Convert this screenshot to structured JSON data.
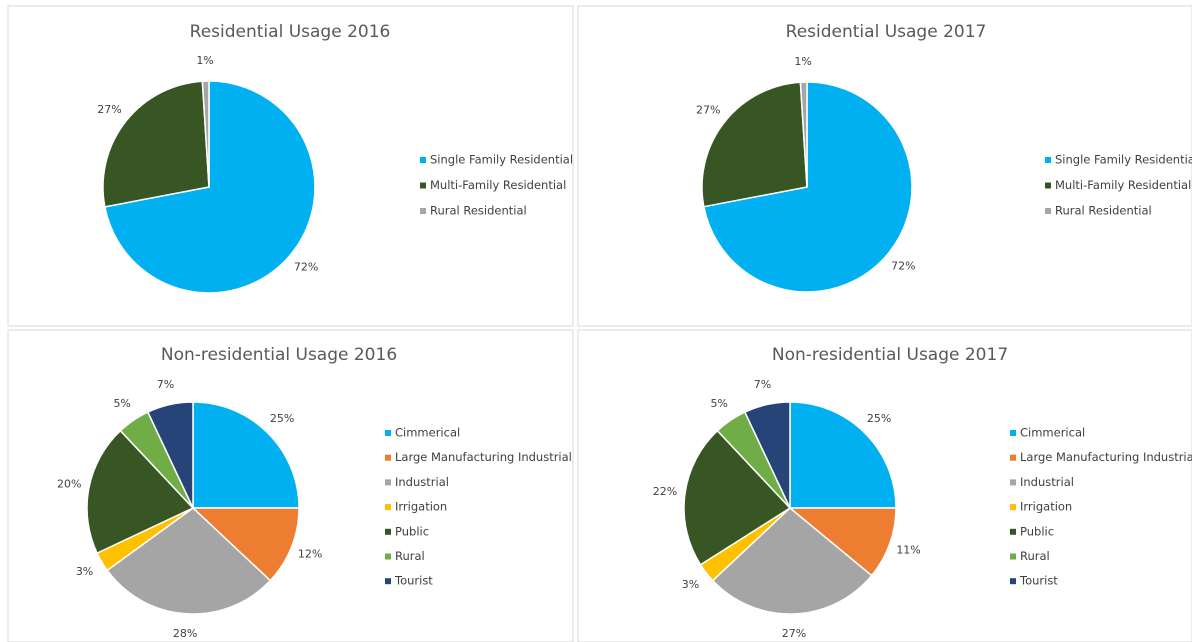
{
  "chart_data": [
    {
      "type": "pie",
      "title": "Residential Usage 2016",
      "categories": [
        "Single Family Residential",
        "Multi-Family Residential",
        "Rural Residential"
      ],
      "values": [
        72,
        27,
        1
      ],
      "value_labels": [
        "72%",
        "27%",
        "1%"
      ],
      "colors": [
        "#00b0f0",
        "#375623",
        "#a6a6a6"
      ]
    },
    {
      "type": "pie",
      "title": "Residential Usage 2017",
      "categories": [
        "Single Family Residential",
        "Multi-Family Residential",
        "Rural Residential"
      ],
      "values": [
        72,
        27,
        1
      ],
      "value_labels": [
        "72%",
        "27%",
        "1%"
      ],
      "colors": [
        "#00b0f0",
        "#375623",
        "#a6a6a6"
      ]
    },
    {
      "type": "pie",
      "title": "Non-residential Usage 2016",
      "categories": [
        "Cimmerical",
        "Large Manufacturing Industrial",
        "Industrial",
        "Irrigation",
        "Public",
        "Rural",
        "Tourist"
      ],
      "values": [
        25,
        12,
        28,
        3,
        20,
        5,
        7
      ],
      "value_labels": [
        "25%",
        "12%",
        "28%",
        "3%",
        "20%",
        "5%",
        "7%"
      ],
      "colors": [
        "#00b0f0",
        "#ed7d31",
        "#a5a5a5",
        "#ffc000",
        "#375623",
        "#70ad47",
        "#264478"
      ]
    },
    {
      "type": "pie",
      "title": "Non-residential Usage 2017",
      "categories": [
        "Cimmerical",
        "Large Manufacturing Industrial",
        "Industrial",
        "Irrigation",
        "Public",
        "Rural",
        "Tourist"
      ],
      "values": [
        25,
        11,
        27,
        3,
        22,
        5,
        7
      ],
      "value_labels": [
        "25%",
        "11%",
        "27%",
        "3%",
        "22%",
        "5%",
        "7%"
      ],
      "colors": [
        "#00b0f0",
        "#ed7d31",
        "#a5a5a5",
        "#ffc000",
        "#375623",
        "#70ad47",
        "#264478"
      ]
    }
  ]
}
